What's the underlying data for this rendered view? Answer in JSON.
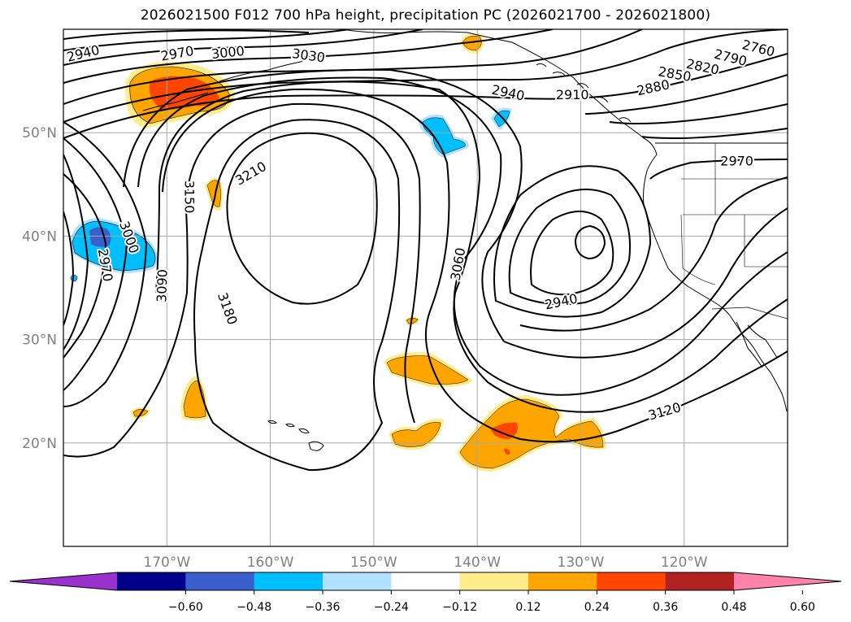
{
  "title": "2026021500 F012 700 hPa height, precipitation PC (2026021700 - 2026021800)",
  "map": {
    "lat_range": [
      10,
      60
    ],
    "lon_range": [
      -180,
      -110
    ],
    "lat_ticks": [
      {
        "lat": 50,
        "label": "50°N"
      },
      {
        "lat": 40,
        "label": "40°N"
      },
      {
        "lat": 30,
        "label": "30°N"
      },
      {
        "lat": 20,
        "label": "20°N"
      }
    ],
    "lon_ticks": [
      {
        "lon": -170,
        "label": "170°W"
      },
      {
        "lon": -160,
        "label": "160°W"
      },
      {
        "lon": -150,
        "label": "150°W"
      },
      {
        "lon": -140,
        "label": "140°W"
      },
      {
        "lon": -130,
        "label": "130°W"
      },
      {
        "lon": -120,
        "label": "120°W"
      }
    ],
    "contour_labels": [
      {
        "text": "2940",
        "lon": -178.1,
        "lat": 57.7,
        "rot": -14
      },
      {
        "text": "2970",
        "lon": -169.0,
        "lat": 57.7,
        "rot": -10
      },
      {
        "text": "3000",
        "lon": -164.1,
        "lat": 57.8,
        "rot": -6
      },
      {
        "text": "3030",
        "lon": -156.3,
        "lat": 57.5,
        "rot": 8
      },
      {
        "text": "2940",
        "lon": -137.0,
        "lat": 53.9,
        "rot": 12
      },
      {
        "text": "2910",
        "lon": -130.8,
        "lat": 53.7,
        "rot": 0
      },
      {
        "text": "2880",
        "lon": -123.0,
        "lat": 54.4,
        "rot": -12
      },
      {
        "text": "2850",
        "lon": -120.9,
        "lat": 55.7,
        "rot": 10
      },
      {
        "text": "2820",
        "lon": -118.2,
        "lat": 56.4,
        "rot": 12
      },
      {
        "text": "2790",
        "lon": -115.5,
        "lat": 57.3,
        "rot": 14
      },
      {
        "text": "2760",
        "lon": -112.8,
        "lat": 58.2,
        "rot": 14
      },
      {
        "text": "2970",
        "lon": -114.9,
        "lat": 47.3,
        "rot": 0
      },
      {
        "text": "3210",
        "lon": -161.9,
        "lat": 46.1,
        "rot": -30
      },
      {
        "text": "3150",
        "lon": -167.8,
        "lat": 43.8,
        "rot": 90
      },
      {
        "text": "3000",
        "lon": -173.6,
        "lat": 39.9,
        "rot": 70
      },
      {
        "text": "2970",
        "lon": -175.9,
        "lat": 37.2,
        "rot": 80
      },
      {
        "text": "3090",
        "lon": -170.5,
        "lat": 35.2,
        "rot": -88
      },
      {
        "text": "3180",
        "lon": -164.1,
        "lat": 33.0,
        "rot": 70
      },
      {
        "text": "3060",
        "lon": -141.9,
        "lat": 37.3,
        "rot": -80
      },
      {
        "text": "2940",
        "lon": -131.9,
        "lat": 33.7,
        "rot": -12
      },
      {
        "text": "3120",
        "lon": -121.9,
        "lat": 23.1,
        "rot": -16
      }
    ]
  },
  "colorbar": {
    "levels": [
      -0.6,
      -0.48,
      -0.36,
      -0.24,
      -0.12,
      0.12,
      0.24,
      0.36,
      0.48,
      0.6
    ],
    "tick_labels": [
      "−0.60",
      "−0.48",
      "−0.36",
      "−0.24",
      "−0.12",
      "0.12",
      "0.24",
      "0.36",
      "0.48",
      "0.60"
    ],
    "colors": [
      "#9932cc",
      "#00008b",
      "#3a5fcd",
      "#00bfff",
      "#b0e2ff",
      "#ffffff",
      "#ffec8b",
      "#ffa500",
      "#ff4500",
      "#b22222",
      "#ff82ab"
    ]
  },
  "style": {
    "axis_label_color": "#808080",
    "grid_color": "#a8a8a8"
  }
}
